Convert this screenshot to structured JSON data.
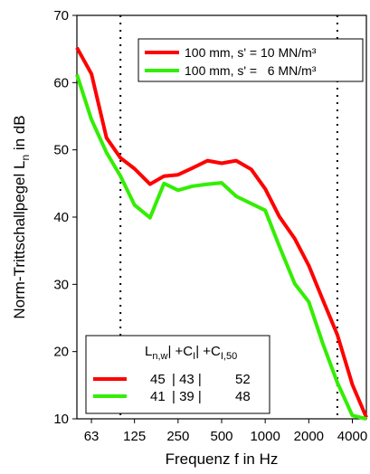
{
  "chart_data": {
    "type": "line",
    "title": "",
    "xlabel": "Frequenz f in Hz",
    "ylabel": "Norm-Trittschallpegel L_n in dB",
    "ylabel_main": "Norm-Trittschallpegel L",
    "ylabel_sub": "n",
    "ylabel_tail": " in dB",
    "xscale": "log (third-octave bands)",
    "x_tick_labels": [
      "63",
      "125",
      "250",
      "500",
      "1000",
      "2000",
      "4000"
    ],
    "y_ticks": [
      10,
      20,
      30,
      40,
      50,
      60,
      70
    ],
    "ylim": [
      10,
      70
    ],
    "xlim": [
      50,
      5000
    ],
    "grid": false,
    "reference_lines": [
      100,
      3150
    ],
    "x": [
      50,
      63,
      80,
      100,
      125,
      160,
      200,
      250,
      315,
      400,
      500,
      630,
      800,
      1000,
      1250,
      1600,
      2000,
      2500,
      3150,
      4000,
      5000
    ],
    "series": [
      {
        "name": "100 mm, s' = 10 MN/m³",
        "color": "#ff0000",
        "values": [
          65.2,
          61.3,
          51.8,
          48.8,
          47.2,
          44.9,
          46.1,
          46.3,
          47.3,
          48.4,
          48.0,
          48.4,
          47.1,
          44.2,
          40.1,
          36.8,
          32.8,
          27.7,
          22.5,
          15.1,
          10.2
        ]
      },
      {
        "name": "100 mm, s' =   6 MN/m³",
        "color": "#33ee00",
        "values": [
          61.2,
          54.5,
          49.6,
          46.1,
          41.8,
          39.9,
          45.0,
          44.0,
          44.6,
          44.9,
          45.1,
          43.1,
          42.0,
          41.0,
          35.7,
          30.1,
          27.4,
          21.2,
          15.4,
          10.5,
          10.0
        ]
      }
    ],
    "legend_position": "top-right",
    "table": {
      "header": [
        "L",
        "n,w",
        "| +C",
        "I",
        "| +C",
        "I,50"
      ],
      "rows": [
        {
          "color": "#ff0000",
          "cells": [
            "45",
            "| 43 |",
            "52"
          ]
        },
        {
          "color": "#33ee00",
          "cells": [
            "41",
            "| 39 |",
            "48"
          ]
        }
      ],
      "position": "bottom-left"
    }
  }
}
